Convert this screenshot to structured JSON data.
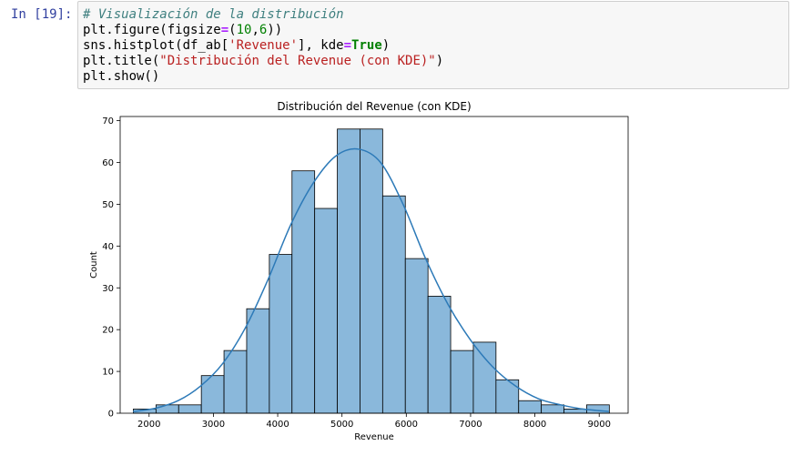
{
  "cell": {
    "prompt": "In [19]:",
    "code": {
      "line1": {
        "comment": "# Visualización de la distribución"
      },
      "line2": {
        "a": "plt.figure(figsize",
        "op": "=",
        "b": "(",
        "n1": "10",
        "c": ",",
        "n2": "6",
        "d": "))"
      },
      "line3": {
        "a": "sns.histplot(df_ab[",
        "str": "'Revenue'",
        "b": "], kde",
        "op": "=",
        "kw": "True",
        "c": ")"
      },
      "line4": {
        "a": "plt.title(",
        "str": "\"Distribución del Revenue (con KDE)\"",
        "b": ")"
      },
      "line5": {
        "a": "plt.show()"
      }
    }
  },
  "chart_data": {
    "type": "bar",
    "title": "Distribución del Revenue (con KDE)",
    "xlabel": "Revenue",
    "ylabel": "Count",
    "xlim": [
      1550,
      9450
    ],
    "ylim": [
      0,
      71
    ],
    "xticks": [
      2000,
      3000,
      4000,
      5000,
      6000,
      7000,
      8000,
      9000
    ],
    "yticks": [
      0,
      10,
      20,
      30,
      40,
      50,
      60,
      70
    ],
    "bin_start": 1755,
    "bin_width": 352.5,
    "counts": [
      1,
      2,
      2,
      9,
      15,
      25,
      38,
      58,
      49,
      68,
      68,
      52,
      37,
      28,
      15,
      17,
      8,
      3,
      2,
      1,
      2
    ],
    "bar_color": "#8ab8db",
    "kde_color": "#2d7ab8",
    "kde": {
      "x": [
        1750,
        2100,
        2450,
        2800,
        3150,
        3500,
        3850,
        4200,
        4550,
        4900,
        5250,
        5600,
        5950,
        6300,
        6650,
        7000,
        7350,
        7700,
        8050,
        8400,
        8750,
        9150
      ],
      "y": [
        0.4,
        1.2,
        3.0,
        6.5,
        12.0,
        20.5,
        32.0,
        45.0,
        55.0,
        61.5,
        63.2,
        60.0,
        50.0,
        37.0,
        26.0,
        17.5,
        11.0,
        6.5,
        3.5,
        2.0,
        1.0,
        0.4
      ]
    }
  }
}
